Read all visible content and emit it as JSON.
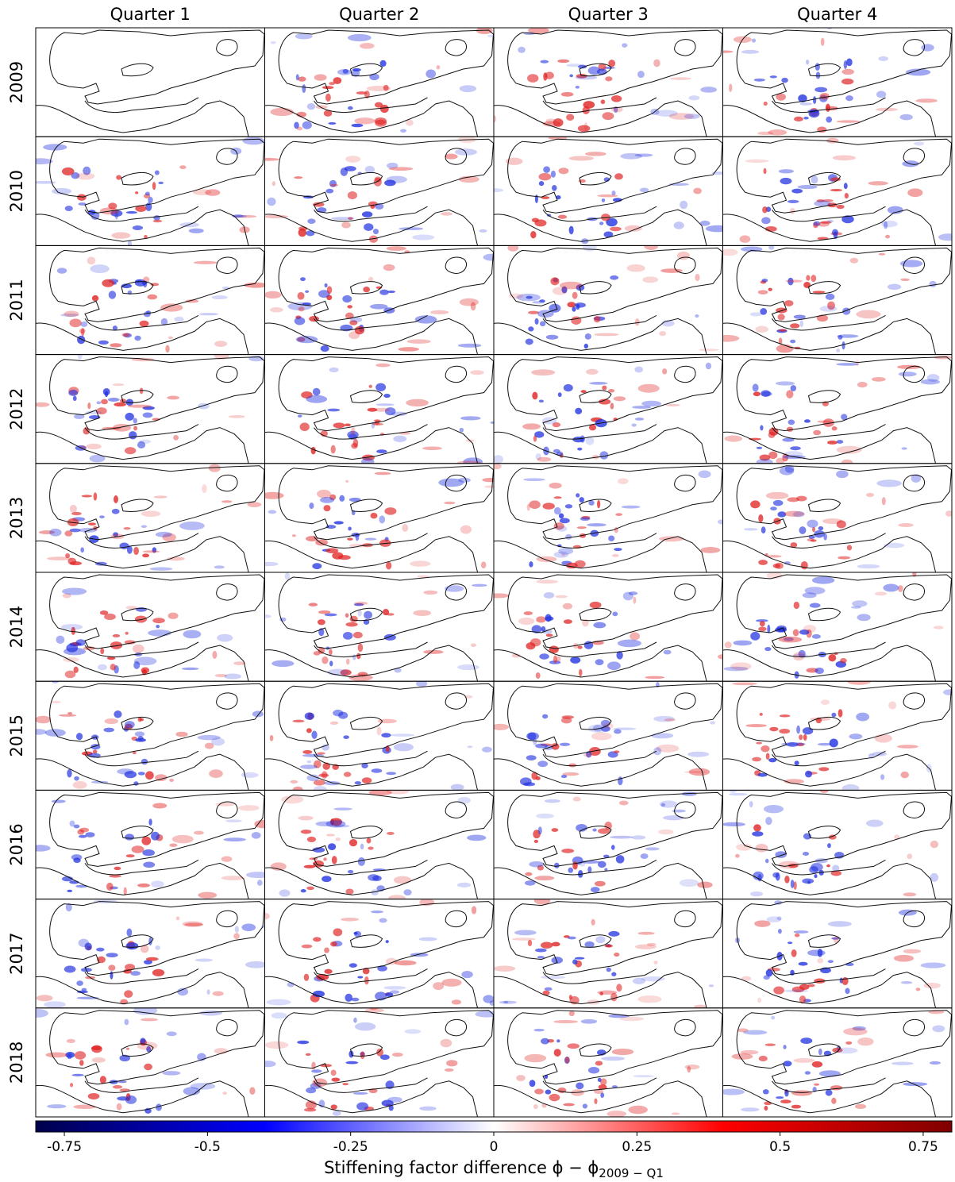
{
  "columns": [
    "Quarter 1",
    "Quarter 2",
    "Quarter 3",
    "Quarter 4"
  ],
  "rows": [
    "2009",
    "2010",
    "2011",
    "2012",
    "2013",
    "2014",
    "2015",
    "2016",
    "2017",
    "2018"
  ],
  "colorbar": {
    "lim": [
      -0.8,
      0.8
    ],
    "ticks": [
      -0.75,
      -0.5,
      -0.25,
      0,
      0.25,
      0.5,
      0.75
    ],
    "label": {
      "text": "Stiffening factor difference ϕ − ϕ",
      "subscript": "2009 − Q1"
    }
  }
}
